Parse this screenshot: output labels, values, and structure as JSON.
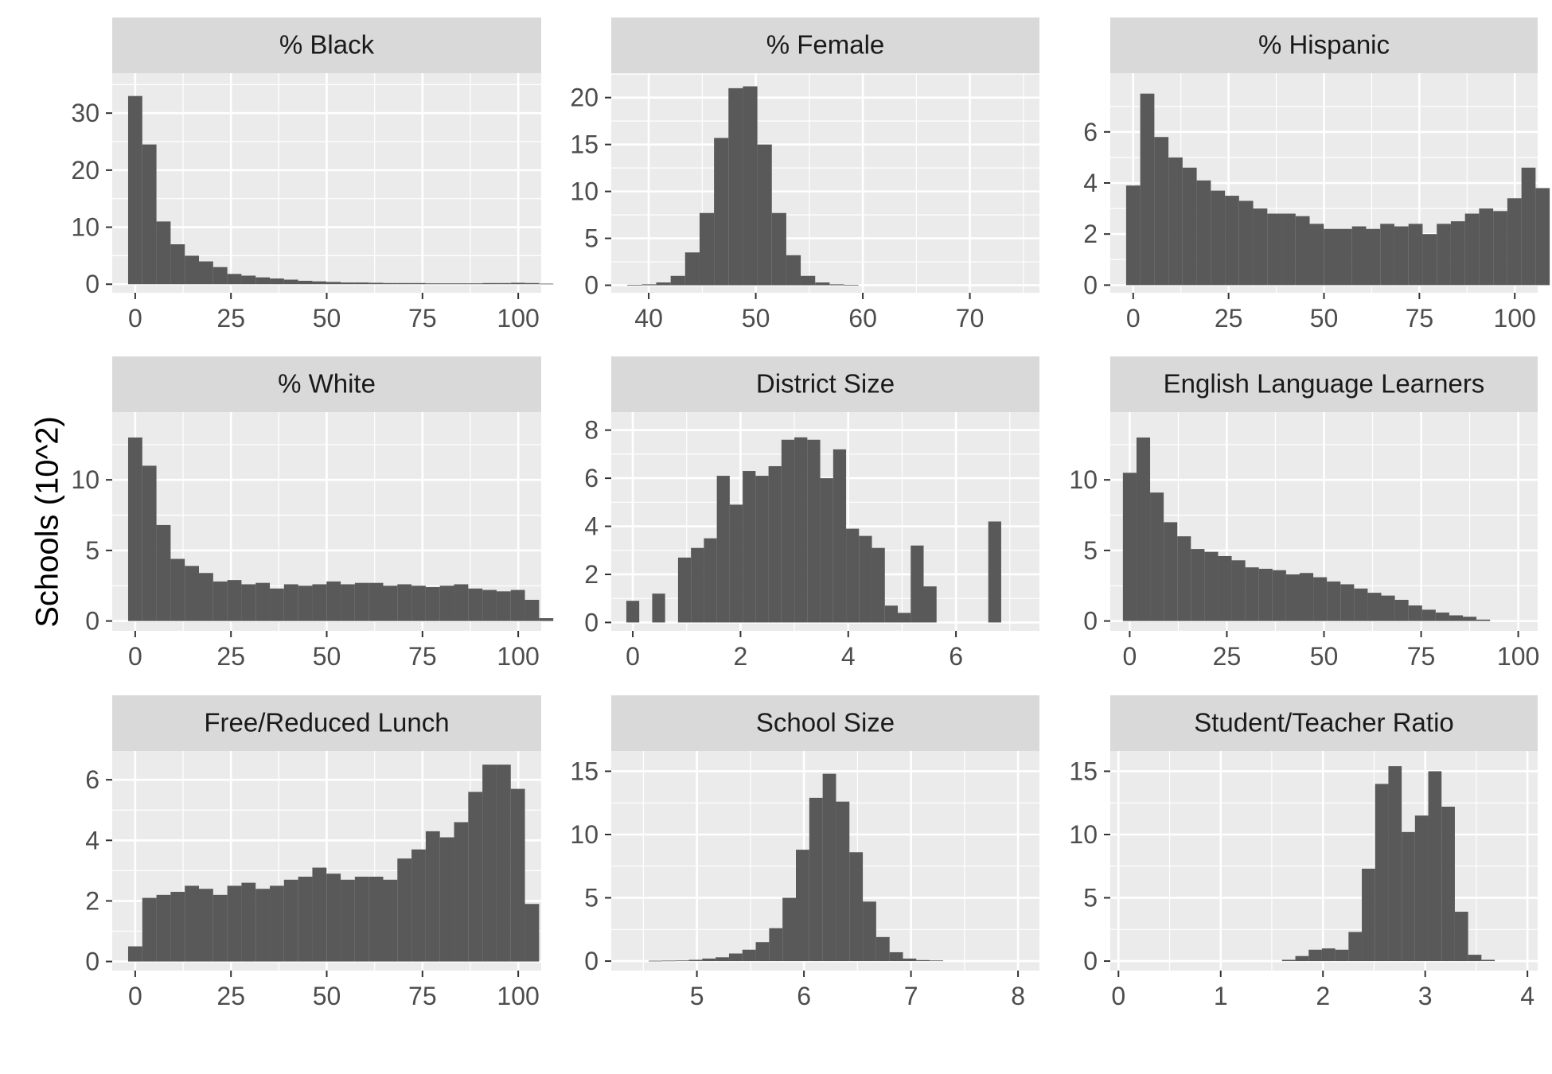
{
  "ylabel": "Schools (10^2)",
  "colors": {
    "panel_bg": "#EBEBEB",
    "strip_bg": "#D9D9D9",
    "bar": "#595959",
    "grid": "#FFFFFF"
  },
  "chart_data": [
    {
      "type": "bar",
      "title": "% Black",
      "xlim": [
        -6,
        106
      ],
      "ylim": [
        -1.5,
        37
      ],
      "xticks": [
        0,
        25,
        50,
        75,
        100
      ],
      "yticks": [
        0,
        10,
        20,
        30
      ],
      "bin_start": -1.85,
      "bin_width": 3.7,
      "values": [
        33,
        24.5,
        11,
        7,
        5,
        4,
        3,
        1.8,
        1.5,
        1.2,
        1,
        0.8,
        0.6,
        0.5,
        0.4,
        0.3,
        0.3,
        0.25,
        0.2,
        0.2,
        0.2,
        0.15,
        0.15,
        0.15,
        0.15,
        0.2,
        0.2,
        0.25,
        0.2,
        0.1
      ]
    },
    {
      "type": "bar",
      "title": "% Female",
      "xlim": [
        36.5,
        76.5
      ],
      "ylim": [
        -0.8,
        22.6
      ],
      "xticks": [
        40,
        50,
        60,
        70
      ],
      "yticks": [
        0,
        5,
        10,
        15,
        20
      ],
      "bin_start": 38.0,
      "bin_width": 1.35,
      "values": [
        0.05,
        0.1,
        0.3,
        1,
        3.5,
        7.7,
        15.7,
        21,
        21.2,
        15,
        7.7,
        3.2,
        1,
        0.3,
        0.1,
        0.05
      ]
    },
    {
      "type": "bar",
      "title": "% Hispanic",
      "xlim": [
        -6,
        106
      ],
      "ylim": [
        -0.3,
        8.3
      ],
      "xticks": [
        0,
        25,
        50,
        75,
        100
      ],
      "yticks": [
        0,
        2,
        4,
        6
      ],
      "bin_start": -1.85,
      "bin_width": 3.7,
      "values": [
        3.9,
        7.5,
        5.8,
        5,
        4.6,
        4.1,
        3.7,
        3.5,
        3.3,
        3,
        2.8,
        2.8,
        2.7,
        2.4,
        2.2,
        2.2,
        2.3,
        2.2,
        2.4,
        2.3,
        2.4,
        2,
        2.4,
        2.5,
        2.8,
        3,
        2.9,
        3.4,
        4.6,
        3.8
      ]
    },
    {
      "type": "bar",
      "title": "% White",
      "xlim": [
        -6,
        106
      ],
      "ylim": [
        -0.7,
        14.8
      ],
      "xticks": [
        0,
        25,
        50,
        75,
        100
      ],
      "yticks": [
        0,
        5,
        10
      ],
      "bin_start": -1.85,
      "bin_width": 3.7,
      "values": [
        13,
        11,
        6.8,
        4.4,
        3.9,
        3.4,
        2.8,
        2.9,
        2.6,
        2.7,
        2.3,
        2.6,
        2.5,
        2.6,
        2.8,
        2.6,
        2.7,
        2.7,
        2.5,
        2.6,
        2.5,
        2.4,
        2.5,
        2.6,
        2.3,
        2.2,
        2.1,
        2.2,
        1.5,
        0.2
      ]
    },
    {
      "type": "bar",
      "title": "District Size",
      "xlim": [
        -0.4,
        7.55
      ],
      "ylim": [
        -0.35,
        8.75
      ],
      "xticks": [
        0,
        2,
        4,
        6
      ],
      "yticks": [
        0,
        2,
        4,
        6,
        8
      ],
      "bin_start": -0.12,
      "bin_width": 0.24,
      "values": [
        0.9,
        0,
        1.2,
        0,
        2.7,
        3.1,
        3.5,
        6.1,
        4.9,
        6.3,
        6.1,
        6.5,
        7.6,
        7.7,
        7.6,
        6,
        7.2,
        3.9,
        3.6,
        3.1,
        0.7,
        0.4,
        3.2,
        1.5,
        0,
        0,
        0,
        0,
        4.2
      ]
    },
    {
      "type": "bar",
      "title": "English Language Learners",
      "xlim": [
        -5,
        105
      ],
      "ylim": [
        -0.7,
        14.8
      ],
      "xticks": [
        0,
        25,
        50,
        75,
        100
      ],
      "yticks": [
        0,
        5,
        10
      ],
      "bin_start": -1.75,
      "bin_width": 3.5,
      "values": [
        10.5,
        13,
        9.1,
        7,
        6,
        5.1,
        4.9,
        4.6,
        4.3,
        3.8,
        3.7,
        3.6,
        3.3,
        3.4,
        3.1,
        2.8,
        2.6,
        2.3,
        2,
        1.8,
        1.5,
        1.1,
        0.8,
        0.6,
        0.4,
        0.3,
        0.1
      ]
    },
    {
      "type": "bar",
      "title": "Free/Reduced Lunch",
      "xlim": [
        -6,
        106
      ],
      "ylim": [
        -0.3,
        6.95
      ],
      "xticks": [
        0,
        25,
        50,
        75,
        100
      ],
      "yticks": [
        0,
        2,
        4,
        6
      ],
      "bin_start": -1.85,
      "bin_width": 3.7,
      "values": [
        0.5,
        2.1,
        2.2,
        2.3,
        2.5,
        2.4,
        2.2,
        2.5,
        2.6,
        2.4,
        2.5,
        2.7,
        2.8,
        3.1,
        2.9,
        2.7,
        2.8,
        2.8,
        2.7,
        3.4,
        3.7,
        4.3,
        4.1,
        4.6,
        5.6,
        6.5,
        6.5,
        5.7,
        1.9
      ]
    },
    {
      "type": "bar",
      "title": "School Size",
      "xlim": [
        4.2,
        8.2
      ],
      "ylim": [
        -0.75,
        16.6
      ],
      "xticks": [
        5,
        6,
        7,
        8
      ],
      "yticks": [
        0,
        5,
        10,
        15
      ],
      "bin_start": 4.55,
      "bin_width": 0.125,
      "values": [
        0.03,
        0.04,
        0.05,
        0.1,
        0.2,
        0.3,
        0.6,
        0.9,
        1.5,
        2.6,
        5,
        8.8,
        12.9,
        14.8,
        12.6,
        8.6,
        4.7,
        1.9,
        0.7,
        0.2,
        0.08,
        0.05
      ]
    },
    {
      "type": "bar",
      "title": "Student/Teacher Ratio",
      "xlim": [
        -0.08,
        4.1
      ],
      "ylim": [
        -0.75,
        16.6
      ],
      "xticks": [
        0,
        1,
        2,
        3,
        4
      ],
      "yticks": [
        0,
        5,
        10,
        15
      ],
      "bin_start": 1.6,
      "bin_width": 0.13,
      "values": [
        0.1,
        0.4,
        0.9,
        1,
        0.9,
        2.3,
        7.3,
        14,
        15.4,
        10.2,
        11.5,
        15,
        12.2,
        3.9,
        0.5,
        0.1
      ]
    }
  ]
}
